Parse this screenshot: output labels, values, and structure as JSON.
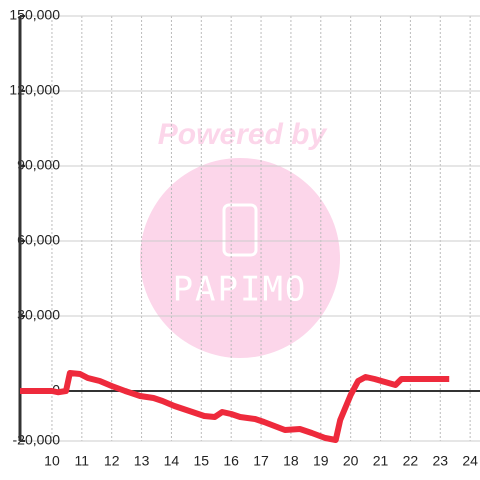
{
  "chart_data": {
    "type": "line",
    "x": [
      8.93,
      10,
      10.2,
      10.47,
      10.6,
      10.94,
      11.2,
      11.6,
      12,
      12.45,
      12.95,
      13.4,
      13.7,
      14.1,
      14.6,
      15.1,
      15.45,
      15.7,
      16,
      16.3,
      16.8,
      17.1,
      17.45,
      17.8,
      18.3,
      18.7,
      19.15,
      19.5,
      19.65,
      20,
      20.25,
      20.5,
      20.8,
      21.15,
      21.5,
      21.7,
      23.3
    ],
    "series": [
      {
        "color": "#ee2a3c",
        "values": [
          0,
          0,
          -500,
          0,
          7200,
          6800,
          5200,
          4000,
          2000,
          0,
          -2000,
          -2800,
          -4000,
          -6000,
          -8000,
          -10000,
          -10400,
          -8400,
          -9200,
          -10400,
          -11200,
          -12400,
          -14000,
          -15600,
          -15200,
          -16800,
          -18800,
          -19600,
          -11600,
          -1600,
          4000,
          5600,
          4800,
          3600,
          2400,
          4800,
          4800
        ]
      }
    ],
    "xlim": [
      8.93,
      24.33
    ],
    "xticks": [
      10,
      11,
      12,
      13,
      14,
      15,
      16,
      17,
      18,
      19,
      20,
      21,
      22,
      23,
      24
    ],
    "ylim": [
      -20000,
      150000
    ],
    "yticks": [
      {
        "value": -20000,
        "label": "-20,000"
      },
      0,
      {
        "value": 30000,
        "label": "30,000"
      },
      {
        "value": 60000,
        "label": "60,000"
      },
      {
        "value": 90000,
        "label": "90,000"
      },
      {
        "value": 120000,
        "label": "120,000"
      },
      {
        "value": 150000,
        "label": "150,000"
      }
    ],
    "grid": true,
    "watermark": {
      "line1": "Powered by",
      "line2": "PAPIMO"
    }
  }
}
